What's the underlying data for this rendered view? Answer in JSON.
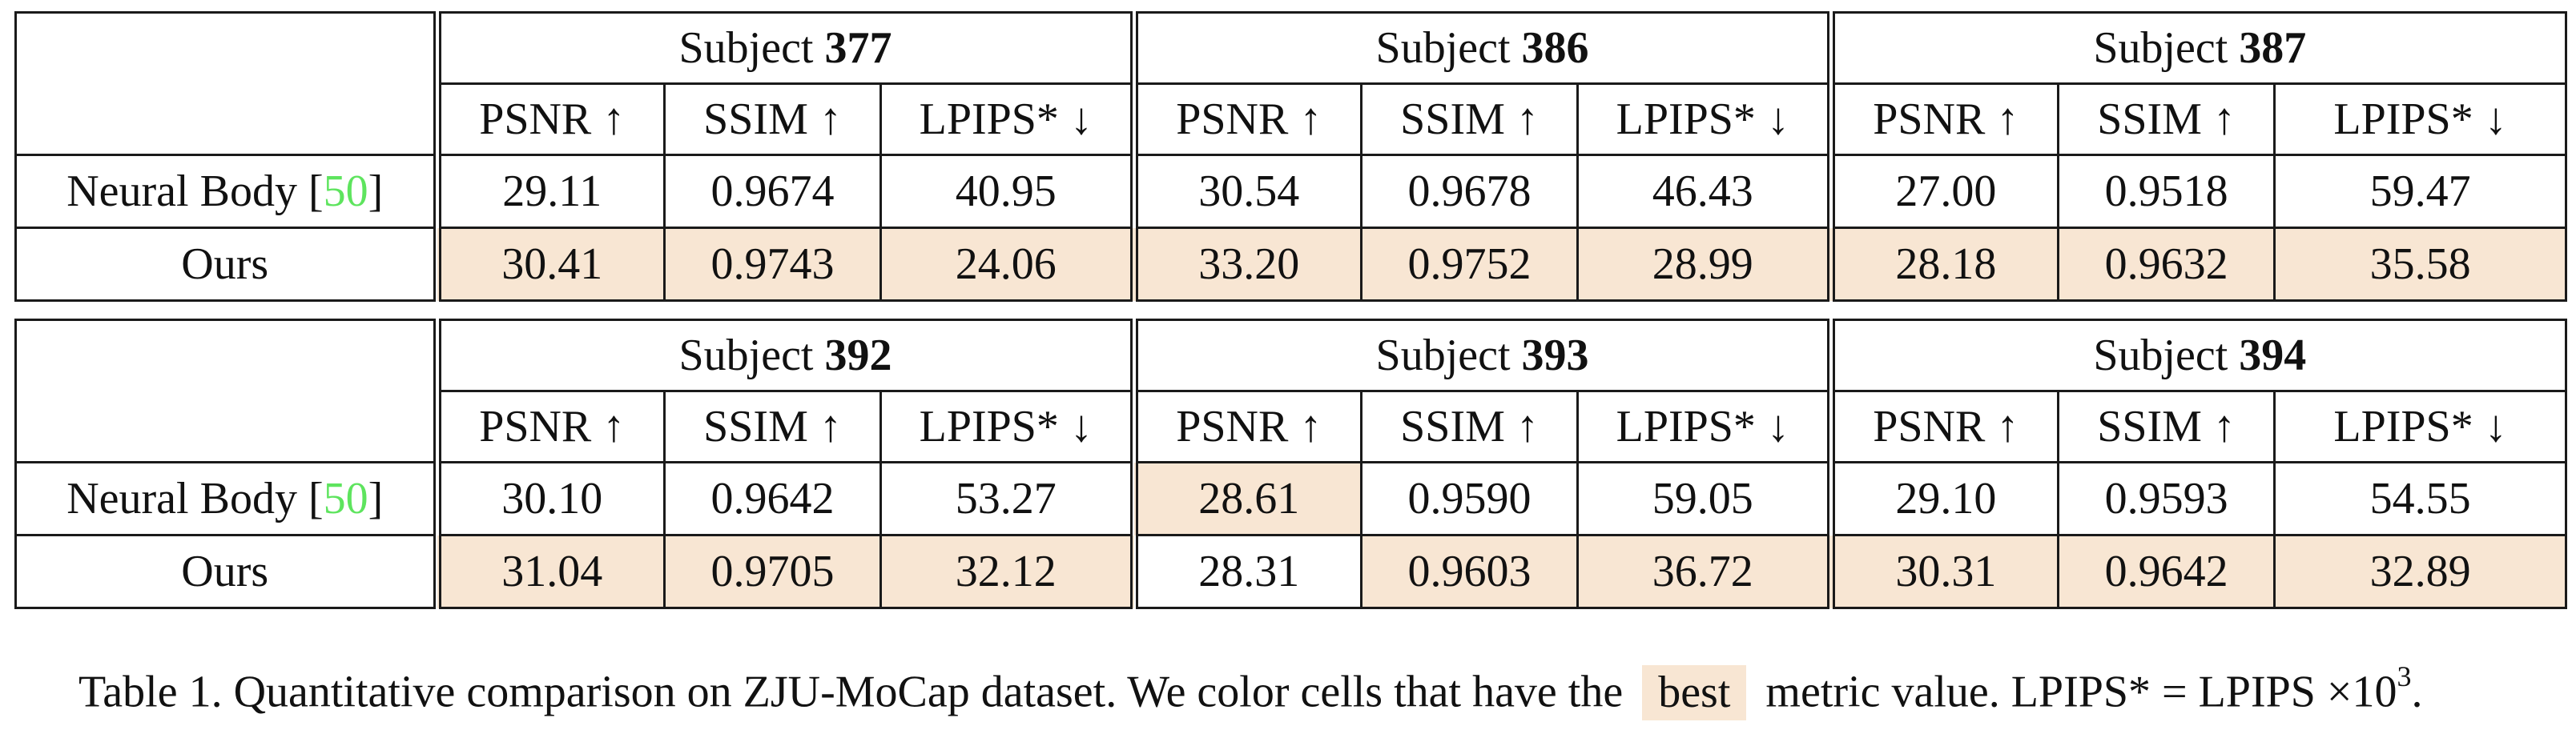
{
  "colors": {
    "best": "#f8e6d3",
    "cite": "#5ee45e"
  },
  "metrics": [
    "PSNR ↑",
    "SSIM ↑",
    "LPIPS* ↓"
  ],
  "subject_prefix": "Subject",
  "tables": [
    {
      "subjects": [
        "377",
        "386",
        "387"
      ],
      "rows": [
        {
          "label": "Neural Body [",
          "cite": "50",
          "label_end": "]",
          "values": [
            "29.11",
            "0.9674",
            "40.95",
            "30.54",
            "0.9678",
            "46.43",
            "27.00",
            "0.9518",
            "59.47"
          ],
          "best": [
            false,
            false,
            false,
            false,
            false,
            false,
            false,
            false,
            false
          ]
        },
        {
          "label": "Ours",
          "cite": "",
          "label_end": "",
          "values": [
            "30.41",
            "0.9743",
            "24.06",
            "33.20",
            "0.9752",
            "28.99",
            "28.18",
            "0.9632",
            "35.58"
          ],
          "best": [
            true,
            true,
            true,
            true,
            true,
            true,
            true,
            true,
            true
          ]
        }
      ]
    },
    {
      "subjects": [
        "392",
        "393",
        "394"
      ],
      "rows": [
        {
          "label": "Neural Body [",
          "cite": "50",
          "label_end": "]",
          "values": [
            "30.10",
            "0.9642",
            "53.27",
            "28.61",
            "0.9590",
            "59.05",
            "29.10",
            "0.9593",
            "54.55"
          ],
          "best": [
            false,
            false,
            false,
            true,
            false,
            false,
            false,
            false,
            false
          ]
        },
        {
          "label": "Ours",
          "cite": "",
          "label_end": "",
          "values": [
            "31.04",
            "0.9705",
            "32.12",
            "28.31",
            "0.9603",
            "36.72",
            "30.31",
            "0.9642",
            "32.89"
          ],
          "best": [
            true,
            true,
            true,
            false,
            true,
            true,
            true,
            true,
            true
          ]
        }
      ]
    }
  ],
  "caption": {
    "before": "Table 1. Quantitative comparison on ZJU-MoCap dataset. We color cells that have the",
    "swatch": "best",
    "after": "metric value. LPIPS* = LPIPS ×10",
    "exponent": "3",
    "end": "."
  }
}
